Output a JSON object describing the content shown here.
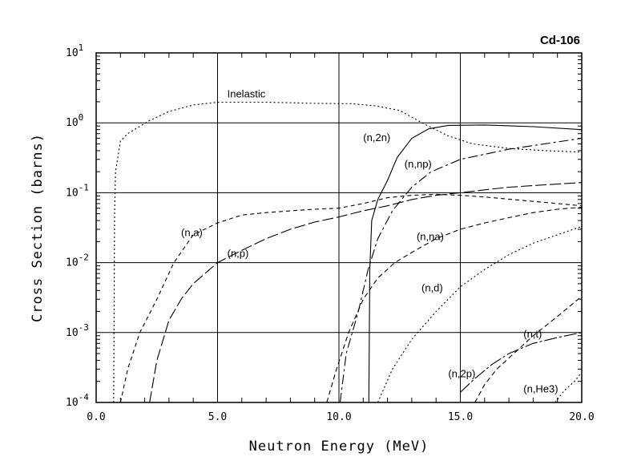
{
  "chart_data": {
    "type": "line",
    "title": "Cd-106",
    "xlabel": "Neutron Energy (MeV)",
    "ylabel": "Cross Section (barns)",
    "x_scale": "linear",
    "y_scale": "log",
    "xlim": [
      0,
      20
    ],
    "ylim": [
      0.0001,
      10
    ],
    "grid": true,
    "x_ticks": [
      "0.0",
      "5.0",
      "10.0",
      "15.0",
      "20.0"
    ],
    "y_ticks": [
      {
        "base": "10",
        "exp": "-4"
      },
      {
        "base": "10",
        "exp": "-3"
      },
      {
        "base": "10",
        "exp": "-2"
      },
      {
        "base": "10",
        "exp": "-1"
      },
      {
        "base": "10",
        "exp": "0"
      },
      {
        "base": "10",
        "exp": "1"
      }
    ],
    "series": [
      {
        "name": "Inelastic",
        "dash": "2,3",
        "points": [
          [
            0.72,
            0.0001
          ],
          [
            0.76,
            0.05
          ],
          [
            0.8,
            0.2
          ],
          [
            1.0,
            0.55
          ],
          [
            1.3,
            0.7
          ],
          [
            1.7,
            0.85
          ],
          [
            2.2,
            1.08
          ],
          [
            3.0,
            1.45
          ],
          [
            4.0,
            1.8
          ],
          [
            5.0,
            1.97
          ],
          [
            7.0,
            1.97
          ],
          [
            9.0,
            1.9
          ],
          [
            10.5,
            1.88
          ],
          [
            11.5,
            1.75
          ],
          [
            12.5,
            1.5
          ],
          [
            13.5,
            0.97
          ],
          [
            14.5,
            0.65
          ],
          [
            15.5,
            0.5
          ],
          [
            17.0,
            0.43
          ],
          [
            18.5,
            0.4
          ],
          [
            20.0,
            0.38
          ]
        ]
      },
      {
        "name": "(n,2n)",
        "dash": "",
        "points": [
          [
            11.23,
            0.0001
          ],
          [
            11.27,
            0.008
          ],
          [
            11.35,
            0.04
          ],
          [
            11.6,
            0.08
          ],
          [
            12.0,
            0.15
          ],
          [
            12.4,
            0.32
          ],
          [
            13.0,
            0.6
          ],
          [
            13.7,
            0.82
          ],
          [
            14.5,
            0.92
          ],
          [
            16.0,
            0.93
          ],
          [
            18.0,
            0.88
          ],
          [
            20.0,
            0.8
          ]
        ]
      },
      {
        "name": "(n,np)",
        "dash": "12,4,3,4",
        "points": [
          [
            10.05,
            0.0001
          ],
          [
            10.3,
            0.0005
          ],
          [
            10.8,
            0.002
          ],
          [
            11.2,
            0.008
          ],
          [
            11.6,
            0.022
          ],
          [
            12.2,
            0.055
          ],
          [
            13.0,
            0.12
          ],
          [
            13.8,
            0.2
          ],
          [
            15.0,
            0.3
          ],
          [
            17.0,
            0.42
          ],
          [
            20.0,
            0.6
          ]
        ]
      },
      {
        "name": "(n,a)",
        "dash": "5,4",
        "points": [
          [
            1.0,
            0.0001
          ],
          [
            1.3,
            0.0003
          ],
          [
            1.8,
            0.001
          ],
          [
            2.5,
            0.003
          ],
          [
            3.2,
            0.01
          ],
          [
            4.0,
            0.025
          ],
          [
            5.0,
            0.037
          ],
          [
            6.0,
            0.048
          ],
          [
            7.0,
            0.052
          ],
          [
            8.0,
            0.055
          ],
          [
            9.0,
            0.058
          ],
          [
            10.0,
            0.06
          ],
          [
            11.0,
            0.07
          ],
          [
            12.0,
            0.085
          ],
          [
            13.0,
            0.092
          ],
          [
            14.0,
            0.095
          ],
          [
            15.0,
            0.092
          ],
          [
            16.0,
            0.087
          ],
          [
            17.5,
            0.078
          ],
          [
            19.0,
            0.07
          ],
          [
            20.0,
            0.065
          ]
        ]
      },
      {
        "name": "(n,p)",
        "dash": "14,4",
        "points": [
          [
            2.2,
            0.0001
          ],
          [
            2.5,
            0.0004
          ],
          [
            3.0,
            0.0015
          ],
          [
            3.5,
            0.003
          ],
          [
            4.0,
            0.005
          ],
          [
            5.0,
            0.01
          ],
          [
            6.0,
            0.015
          ],
          [
            7.0,
            0.022
          ],
          [
            8.0,
            0.03
          ],
          [
            9.0,
            0.038
          ],
          [
            10.0,
            0.045
          ],
          [
            11.0,
            0.055
          ],
          [
            12.0,
            0.065
          ],
          [
            13.0,
            0.08
          ],
          [
            14.0,
            0.092
          ],
          [
            15.0,
            0.1
          ],
          [
            16.0,
            0.11
          ],
          [
            17.0,
            0.12
          ],
          [
            18.5,
            0.13
          ],
          [
            20.0,
            0.14
          ]
        ]
      },
      {
        "name": "(n,na)",
        "dash": "6,4",
        "points": [
          [
            9.5,
            0.0001
          ],
          [
            9.9,
            0.0003
          ],
          [
            10.4,
            0.001
          ],
          [
            11.0,
            0.003
          ],
          [
            11.6,
            0.006
          ],
          [
            12.3,
            0.01
          ],
          [
            13.0,
            0.014
          ],
          [
            14.0,
            0.022
          ],
          [
            15.0,
            0.03
          ],
          [
            16.0,
            0.037
          ],
          [
            17.0,
            0.044
          ],
          [
            18.0,
            0.052
          ],
          [
            19.0,
            0.058
          ],
          [
            20.0,
            0.062
          ]
        ]
      },
      {
        "name": "(n,d)",
        "dash": "2,3",
        "points": [
          [
            11.6,
            0.0001
          ],
          [
            12.2,
            0.0003
          ],
          [
            13.0,
            0.0008
          ],
          [
            14.0,
            0.002
          ],
          [
            15.0,
            0.0045
          ],
          [
            16.0,
            0.008
          ],
          [
            17.0,
            0.013
          ],
          [
            18.0,
            0.019
          ],
          [
            19.0,
            0.025
          ],
          [
            20.0,
            0.033
          ]
        ]
      },
      {
        "name": "(n,t)",
        "dash": "6,4",
        "points": [
          [
            15.6,
            0.0001
          ],
          [
            16.0,
            0.00018
          ],
          [
            16.5,
            0.0003
          ],
          [
            17.2,
            0.0005
          ],
          [
            18.0,
            0.0009
          ],
          [
            19.0,
            0.0017
          ],
          [
            20.0,
            0.0033
          ]
        ]
      },
      {
        "name": "(n,2p)",
        "dash": "16,3,3,3",
        "points": [
          [
            15.0,
            0.00014
          ],
          [
            15.6,
            0.00022
          ],
          [
            16.3,
            0.00035
          ],
          [
            17.0,
            0.0005
          ],
          [
            18.0,
            0.0007
          ],
          [
            19.0,
            0.00085
          ],
          [
            20.0,
            0.001
          ]
        ]
      },
      {
        "name": "(n,He3)",
        "dash": "2,3",
        "points": [
          [
            18.9,
            0.0001
          ],
          [
            19.3,
            0.00015
          ],
          [
            19.7,
            0.0002
          ],
          [
            20.0,
            0.00027
          ]
        ]
      }
    ],
    "labels": [
      {
        "text": "Inelastic",
        "x": 5.4,
        "y": 2.3
      },
      {
        "text": "(n,2n)",
        "x": 11.0,
        "y": 0.55
      },
      {
        "text": "(n,np)",
        "x": 12.7,
        "y": 0.23
      },
      {
        "text": "(n,a)",
        "x": 3.5,
        "y": 0.024
      },
      {
        "text": "(n,p)",
        "x": 5.4,
        "y": 0.012
      },
      {
        "text": "(n,na)",
        "x": 13.2,
        "y": 0.021
      },
      {
        "text": "(n,d)",
        "x": 13.4,
        "y": 0.0039
      },
      {
        "text": "(n,t)",
        "x": 17.6,
        "y": 0.00085
      },
      {
        "text": "(n,2p)",
        "x": 14.5,
        "y": 0.00023
      },
      {
        "text": "(n,He3)",
        "x": 17.6,
        "y": 0.00014
      }
    ]
  }
}
